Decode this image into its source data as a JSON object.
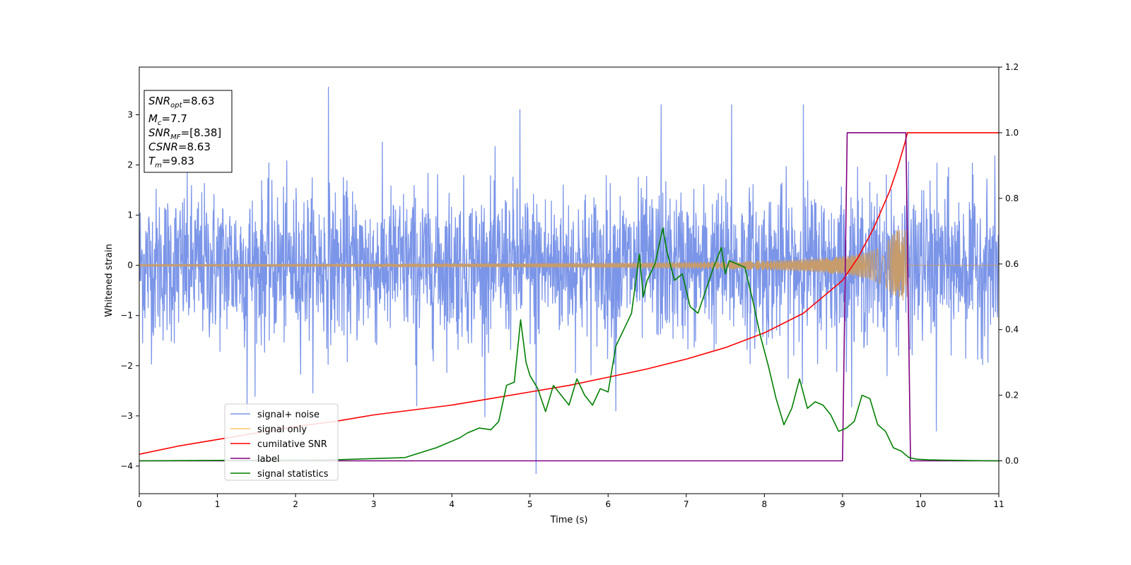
{
  "chart_data": {
    "type": "line",
    "title": "",
    "xlabel": "Time (s)",
    "ylabel": "Whitened strain",
    "xlim": [
      0,
      11
    ],
    "ylim": [
      -4.55,
      3.95
    ],
    "y2lim": [
      -0.1,
      1.2
    ],
    "x_ticks": [
      "0",
      "1",
      "2",
      "3",
      "4",
      "5",
      "6",
      "7",
      "8",
      "9",
      "10",
      "11"
    ],
    "y_ticks": [
      "3",
      "2",
      "1",
      "0",
      "−1",
      "−2",
      "−3",
      "−4"
    ],
    "y_tick_values": [
      3,
      2,
      1,
      0,
      -1,
      -2,
      -3,
      -4
    ],
    "y2_ticks": [
      "1.2",
      "1.0",
      "0.8",
      "0.6",
      "0.4",
      "0.2",
      "0.0"
    ],
    "y2_tick_values": [
      1.2,
      1.0,
      0.8,
      0.6,
      0.4,
      0.2,
      0.0
    ],
    "grid": false,
    "legend_position": "lower-left",
    "legend": [
      {
        "label": "signal+ noise",
        "color": "#7b95e8"
      },
      {
        "label": "signal only",
        "color": "#ffc96b"
      },
      {
        "label": "cumilative SNR",
        "color": "#ff0000"
      },
      {
        "label": "label",
        "color": "#800080"
      },
      {
        "label": "signal statistics",
        "color": "#008000"
      }
    ],
    "info_box": {
      "snr_opt_main": "SNR",
      "snr_opt_sub": "opt",
      "snr_opt_val": "=8.63",
      "mc_main": "M",
      "mc_sub": "c",
      "mc_val": "=7.7",
      "snr_mf_main": "SNR",
      "snr_mf_sub": "MF",
      "snr_mf_val": "=[8.38]",
      "csnr_main": "CSNR",
      "csnr_val": "=8.63",
      "tm_main": "T",
      "tm_sub": "m",
      "tm_val": "=9.83"
    },
    "series": [
      {
        "name": "signal+ noise",
        "axis": "left",
        "style": "noise",
        "color": "#7b95e8",
        "noise_sigma": 0.75,
        "x_range": [
          0,
          11
        ],
        "spikes": [
          [
            2.42,
            3.55
          ],
          [
            5.08,
            -4.15
          ],
          [
            4.87,
            3.1
          ],
          [
            6.68,
            3.2
          ],
          [
            7.58,
            3.2
          ],
          [
            8.5,
            3.2
          ],
          [
            1.38,
            -2.9
          ],
          [
            3.55,
            -2.8
          ],
          [
            10.2,
            -3.3
          ],
          [
            6.1,
            -2.9
          ]
        ]
      },
      {
        "name": "signal only",
        "axis": "left",
        "style": "chirp",
        "color": "#c69c6d",
        "chirp_start": 0,
        "chirp_merger": 9.83,
        "base_amplitude": 0.02,
        "peak_amplitude": 0.7
      },
      {
        "name": "cumilative SNR",
        "axis": "right",
        "color": "#ff0000",
        "x": [
          0,
          0.5,
          1,
          1.5,
          2,
          2.5,
          3,
          3.5,
          4,
          4.5,
          5,
          5.5,
          6,
          6.5,
          7,
          7.5,
          8,
          8.5,
          9,
          9.2,
          9.4,
          9.6,
          9.7,
          9.8,
          9.83,
          11
        ],
        "y": [
          0.02,
          0.045,
          0.065,
          0.085,
          0.105,
          0.12,
          0.14,
          0.155,
          0.17,
          0.19,
          0.21,
          0.23,
          0.255,
          0.28,
          0.31,
          0.345,
          0.39,
          0.45,
          0.55,
          0.62,
          0.71,
          0.82,
          0.89,
          0.97,
          1.0,
          1.0
        ]
      },
      {
        "name": "label",
        "axis": "right",
        "color": "#800080",
        "x": [
          0,
          9.0,
          9.06,
          9.81,
          9.87,
          11
        ],
        "y": [
          0.0,
          0.0,
          1.0,
          1.0,
          0.0,
          0.0
        ]
      },
      {
        "name": "signal statistics",
        "axis": "right",
        "color": "#008000",
        "x": [
          0,
          2.5,
          3,
          3.4,
          3.6,
          3.8,
          4.0,
          4.1,
          4.2,
          4.35,
          4.5,
          4.6,
          4.7,
          4.8,
          4.88,
          4.95,
          5.0,
          5.1,
          5.2,
          5.3,
          5.4,
          5.5,
          5.6,
          5.7,
          5.8,
          5.9,
          6.0,
          6.1,
          6.2,
          6.3,
          6.4,
          6.45,
          6.5,
          6.6,
          6.7,
          6.75,
          6.85,
          6.95,
          7.05,
          7.15,
          7.25,
          7.35,
          7.45,
          7.5,
          7.55,
          7.65,
          7.75,
          7.85,
          7.95,
          8.05,
          8.15,
          8.25,
          8.35,
          8.45,
          8.55,
          8.65,
          8.75,
          8.85,
          8.95,
          9.05,
          9.15,
          9.25,
          9.35,
          9.45,
          9.55,
          9.65,
          9.75,
          9.85,
          9.95,
          10.1,
          10.3,
          10.6,
          11
        ],
        "y": [
          0.0,
          0.003,
          0.007,
          0.01,
          0.025,
          0.04,
          0.06,
          0.07,
          0.085,
          0.1,
          0.095,
          0.12,
          0.23,
          0.24,
          0.43,
          0.3,
          0.26,
          0.22,
          0.15,
          0.23,
          0.2,
          0.17,
          0.25,
          0.2,
          0.17,
          0.22,
          0.21,
          0.35,
          0.4,
          0.45,
          0.63,
          0.5,
          0.55,
          0.6,
          0.71,
          0.64,
          0.55,
          0.57,
          0.47,
          0.45,
          0.52,
          0.59,
          0.65,
          0.57,
          0.61,
          0.6,
          0.59,
          0.49,
          0.38,
          0.29,
          0.19,
          0.11,
          0.16,
          0.25,
          0.16,
          0.18,
          0.17,
          0.14,
          0.09,
          0.1,
          0.12,
          0.2,
          0.19,
          0.11,
          0.09,
          0.04,
          0.03,
          0.01,
          0.005,
          0.003,
          0.002,
          0.001,
          0.0
        ]
      }
    ]
  }
}
